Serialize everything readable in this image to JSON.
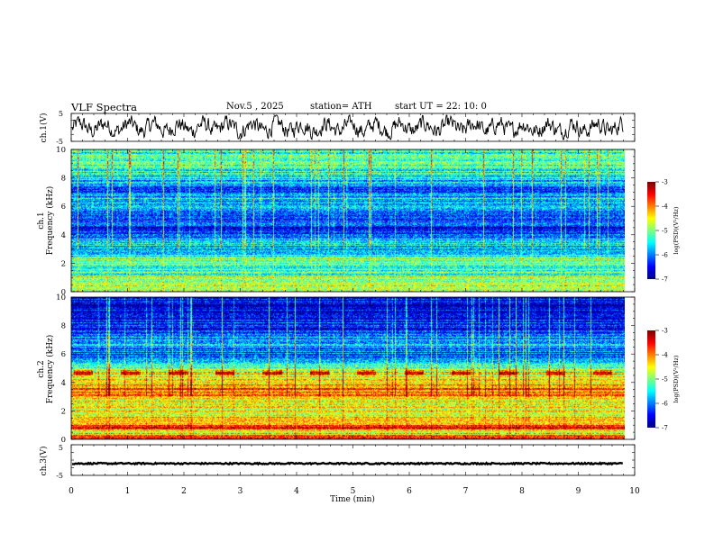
{
  "header": {
    "title": "VLF  Spectra",
    "date": "Nov.5  , 2025",
    "station": "station= ATH",
    "start_ut": "start  UT  =   22: 10: 0"
  },
  "chart_data": [
    {
      "type": "line",
      "name": "ch1-waveform",
      "ylabel": "ch.1(V)",
      "ylim": [
        -5,
        5
      ],
      "yticks": [
        "5",
        "-5"
      ],
      "xlim": [
        0,
        9.8
      ],
      "description": "noisy waveform oscillating roughly between -3 and 3 V"
    },
    {
      "type": "heatmap",
      "name": "ch1-spectrogram",
      "ylabel": "ch.1\nFrequency  (kHz)",
      "ylabel_top": "ch.1",
      "ylabel_bottom": "Frequency  (kHz)",
      "ylim": [
        0,
        10
      ],
      "yticks": [
        "0",
        "2",
        "4",
        "6",
        "8",
        "10"
      ],
      "xlim": [
        0,
        9.8
      ],
      "colorbar": {
        "label": "log(PSD)(V²/Hz)",
        "range": [
          -7,
          -3
        ],
        "ticks": [
          "-3",
          "-4",
          "-5",
          "-6",
          "-7"
        ]
      },
      "profile_khz_logpsd": [
        [
          0,
          -4.6
        ],
        [
          0.3,
          -4.5
        ],
        [
          1,
          -5.1
        ],
        [
          1.5,
          -5.3
        ],
        [
          2,
          -5.0
        ],
        [
          2.5,
          -5.4
        ],
        [
          3,
          -5.8
        ],
        [
          3.5,
          -5.6
        ],
        [
          4,
          -6.2
        ],
        [
          5,
          -6.3
        ],
        [
          6,
          -6.0
        ],
        [
          6.5,
          -5.7
        ],
        [
          7,
          -6.2
        ],
        [
          8,
          -5.6
        ],
        [
          9,
          -5.3
        ],
        [
          10,
          -5.2
        ]
      ]
    },
    {
      "type": "heatmap",
      "name": "ch2-spectrogram",
      "ylabel_top": "ch.2",
      "ylabel_bottom": "Frequency  (kHz)",
      "ylim": [
        0,
        10
      ],
      "yticks": [
        "0",
        "2",
        "4",
        "6",
        "8",
        "10"
      ],
      "xlim": [
        0,
        9.8
      ],
      "colorbar": {
        "label": "log(PSD)(V²/Hz)",
        "range": [
          -7,
          -3
        ],
        "ticks": [
          "-3",
          "-4",
          "-5",
          "-6",
          "-7"
        ]
      },
      "profile_khz_logpsd": [
        [
          0,
          -3.6
        ],
        [
          0.5,
          -4.6
        ],
        [
          0.8,
          -3.5
        ],
        [
          1.2,
          -4.3
        ],
        [
          1.8,
          -4.4
        ],
        [
          2.5,
          -4.7
        ],
        [
          3.2,
          -4.0
        ],
        [
          3.6,
          -3.9
        ],
        [
          4.2,
          -4.6
        ],
        [
          4.7,
          -4.5
        ],
        [
          5.2,
          -5.3
        ],
        [
          6,
          -6.2
        ],
        [
          6.8,
          -5.6
        ],
        [
          7.5,
          -6.3
        ],
        [
          9,
          -6.5
        ],
        [
          10,
          -6.6
        ]
      ]
    },
    {
      "type": "line",
      "name": "ch3-waveform",
      "ylabel": "ch.3(V)",
      "ylim": [
        -5,
        5
      ],
      "yticks": [
        "5",
        "-5"
      ],
      "xlim": [
        0,
        9.8
      ],
      "description": "nearly flat trace around -1.2 V"
    }
  ],
  "xaxis": {
    "label": "Time  (min)",
    "range": [
      0,
      10
    ],
    "ticks": [
      "0",
      "1",
      "2",
      "3",
      "4",
      "5",
      "6",
      "7",
      "8",
      "9",
      "10"
    ]
  }
}
